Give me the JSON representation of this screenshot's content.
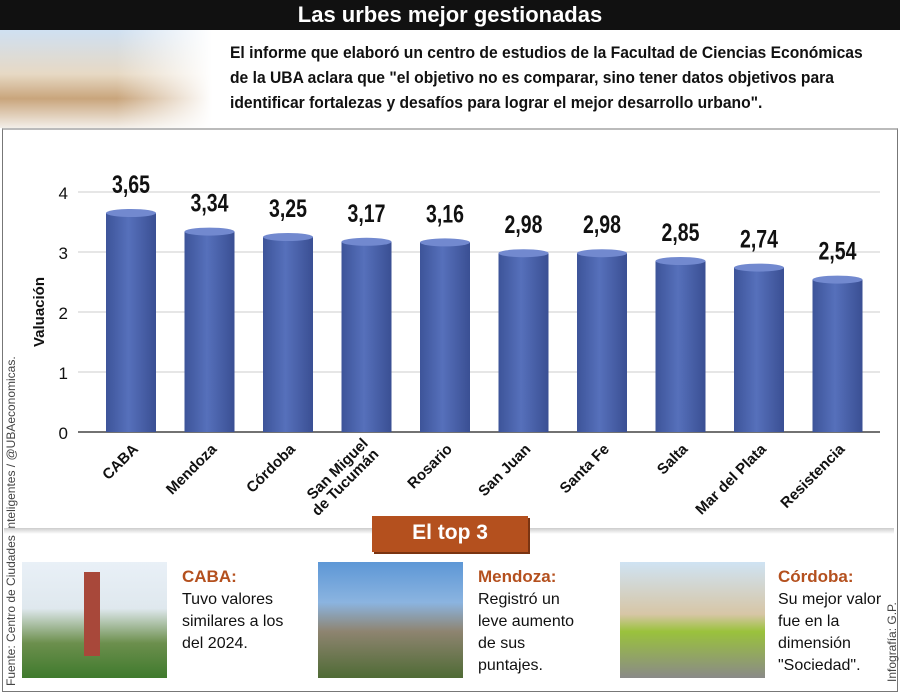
{
  "title": "Las urbes mejor gestionadas",
  "intro_lines": [
    "El informe que elaboró un centro de estudios de la Facultad de Ciencias Económicas",
    "de la UBA aclara que \"el objetivo no es comparar, sino tener datos objetivos para",
    "identificar fortalezas y desafíos para lograr el mejor desarrollo urbano\"."
  ],
  "source": "Fuente: Centro de Ciudades Inteligentes / @UBAeconomicas.",
  "credit": "Infografía: G.P.",
  "colors": {
    "bar": "#4a63ad",
    "accent": "#b4501e"
  },
  "chart_data": {
    "type": "bar",
    "categories": [
      "CABA",
      "Mendoza",
      "Córdoba",
      "San Miguel de Tucumán",
      "Rosario",
      "San Juan",
      "Santa Fe",
      "Salta",
      "Mar del Plata",
      "Resistencia"
    ],
    "values": [
      3.65,
      3.34,
      3.25,
      3.17,
      3.16,
      2.98,
      2.98,
      2.85,
      2.74,
      2.54
    ],
    "data_labels": [
      "3,65",
      "3,34",
      "3,25",
      "3,17",
      "3,16",
      "2,98",
      "2,98",
      "2,85",
      "2,74",
      "2,54"
    ],
    "ylabel": "Valuación",
    "xlabel": "",
    "ylim": [
      0,
      4
    ],
    "yticks": [
      "0",
      "1",
      "2",
      "3",
      "4"
    ],
    "grid": true
  },
  "top3": {
    "banner": "El top 3",
    "cards": [
      {
        "title": "CABA:",
        "lines": [
          "Tuvo valores",
          "similares a los",
          "del 2024."
        ]
      },
      {
        "title": "Mendoza:",
        "lines": [
          "Registró un",
          "leve aumento",
          "de sus",
          "puntajes."
        ]
      },
      {
        "title": "Córdoba:",
        "lines": [
          "Su mejor valor",
          "fue en la",
          "dimensión",
          "\"Sociedad\"."
        ]
      }
    ]
  }
}
